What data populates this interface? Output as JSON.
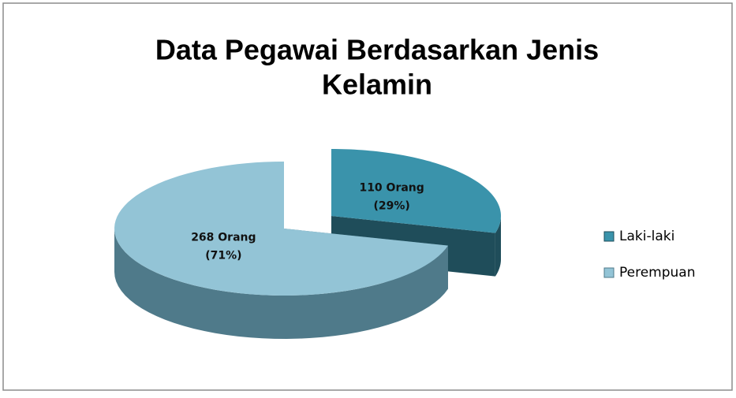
{
  "chart_data": {
    "type": "pie",
    "title": "Data Pegawai Berdasarkan Jenis",
    "subtitle": "Kelamin",
    "categories": [
      "Laki-laki",
      "Perempuan"
    ],
    "values": [
      110,
      268
    ],
    "value_labels": [
      "110 Orang",
      "268 Orang"
    ],
    "percent_labels": [
      "(29%)",
      "(71%)"
    ],
    "colors": [
      "#3a93ab",
      "#93c4d6"
    ],
    "side_colors": [
      "#1f4d5a",
      "#4f7a8a"
    ],
    "exploded": [
      true,
      false
    ],
    "legend": "right"
  }
}
